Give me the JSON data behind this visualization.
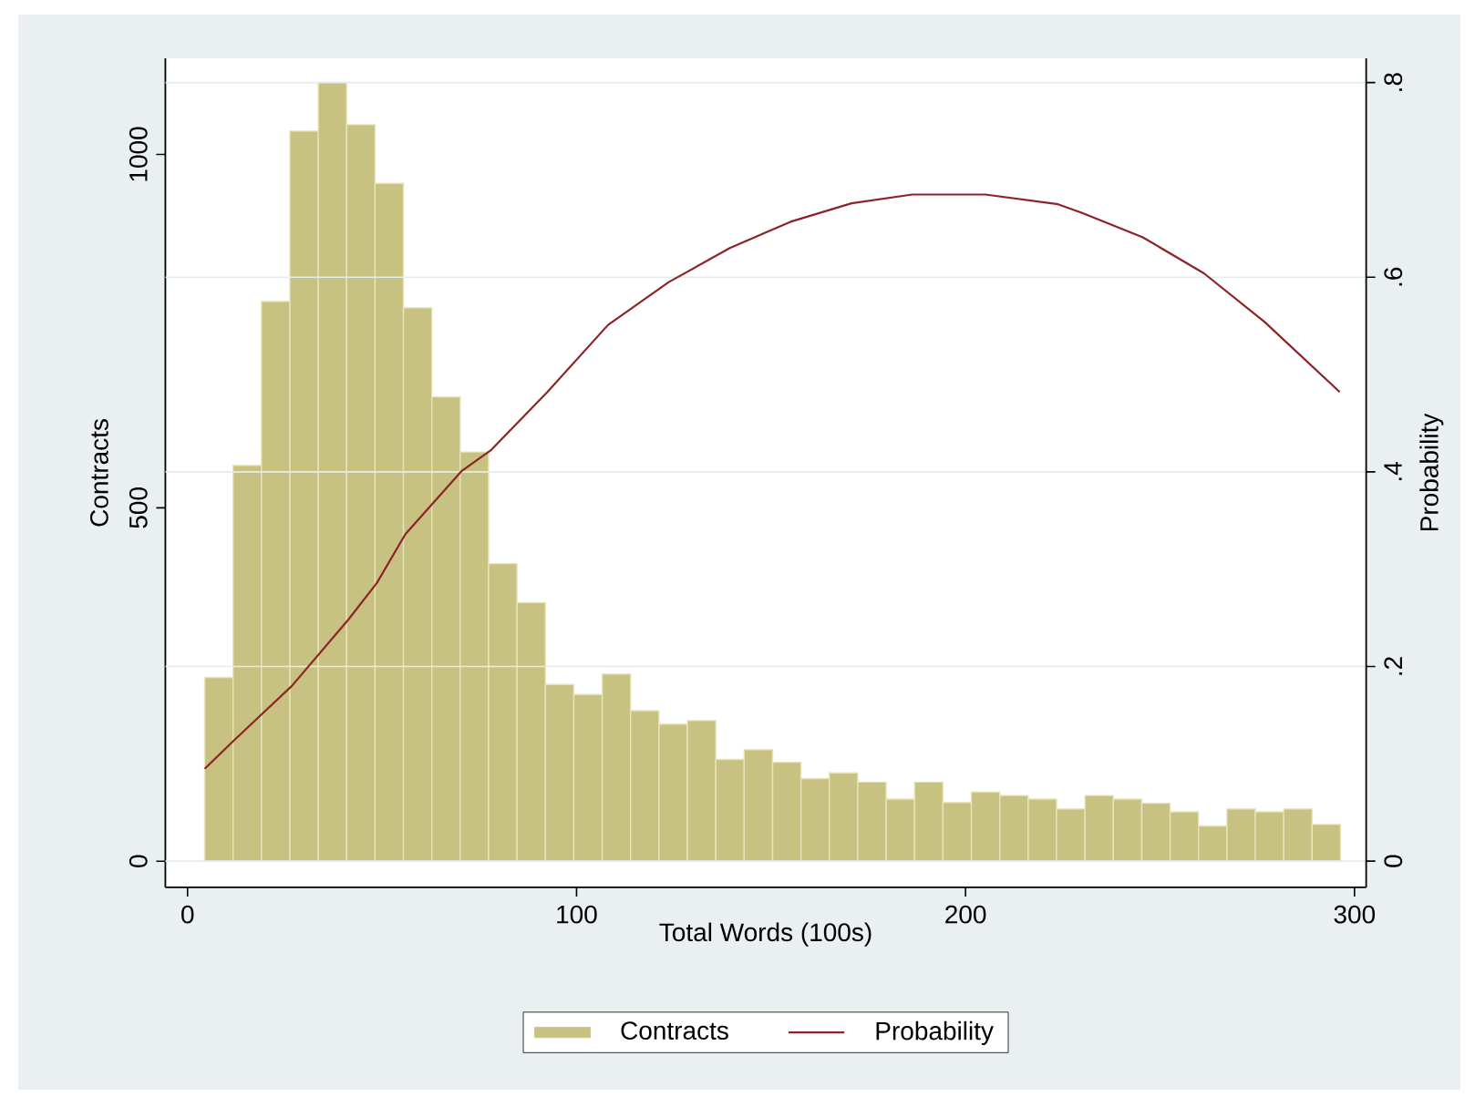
{
  "chart_data": {
    "type": "histogram",
    "xlabel": "Total Words (100s)",
    "ylabel": "Contracts",
    "y2label": "Probability",
    "xlim": [
      -5.7,
      303
    ],
    "xticks": [
      0,
      100,
      200,
      300
    ],
    "ylim": [
      -37,
      1136
    ],
    "yticks": [
      0,
      500,
      1000
    ],
    "y2lim": [
      -0.027,
      0.825
    ],
    "y2ticks": [
      0,
      {
        "value": 0.2,
        "label": ".2"
      },
      {
        "value": 0.4,
        "label": ".4"
      },
      {
        "value": 0.6,
        "label": ".6"
      },
      {
        "value": 0.8,
        "label": ".8"
      }
    ],
    "grid": "y",
    "legend": "bottom",
    "series": [
      {
        "type": "histogram",
        "name": "Contracts",
        "color": "#c8c282",
        "bins": [
          4.4,
          11.7,
          19,
          26.3,
          33.6,
          40.9,
          48.2,
          55.5,
          62.8,
          70.1,
          77.4,
          84.7,
          92,
          99.3,
          106.6,
          113.9,
          121.2,
          128.5,
          135.8,
          143.1,
          150.4,
          157.7,
          165,
          172.3,
          179.6,
          186.9,
          194.2,
          201.5,
          208.8,
          216.1,
          223.4,
          230.7,
          238,
          245.3,
          252.6,
          259.9,
          267.2,
          274.5,
          281.8,
          289.1,
          296.4
        ],
        "values": [
          260,
          560,
          792,
          1033,
          1102,
          1042,
          959,
          783,
          657,
          579,
          421,
          366,
          250,
          236,
          265,
          213,
          194,
          199,
          144,
          158,
          140,
          117,
          125,
          112,
          88,
          112,
          83,
          98,
          93,
          88,
          74,
          93,
          88,
          82,
          70,
          50,
          74,
          70,
          74,
          52
        ]
      },
      {
        "type": "line",
        "name": "Probability",
        "axis": "y2",
        "color": "#8c2328",
        "x": [
          4.4,
          11.9,
          26.8,
          41.3,
          48.7,
          56.0,
          70.5,
          77.9,
          92.5,
          108.1,
          123.7,
          139.4,
          155.0,
          170.7,
          186.3,
          205.1,
          223.8,
          230.0,
          245.6,
          261.3,
          276.9,
          296.2
        ],
        "values": [
          0.095,
          0.124,
          0.18,
          0.248,
          0.286,
          0.336,
          0.401,
          0.422,
          0.482,
          0.551,
          0.595,
          0.63,
          0.657,
          0.676,
          0.685,
          0.685,
          0.675,
          0.666,
          0.641,
          0.604,
          0.554,
          0.482
        ]
      }
    ]
  }
}
